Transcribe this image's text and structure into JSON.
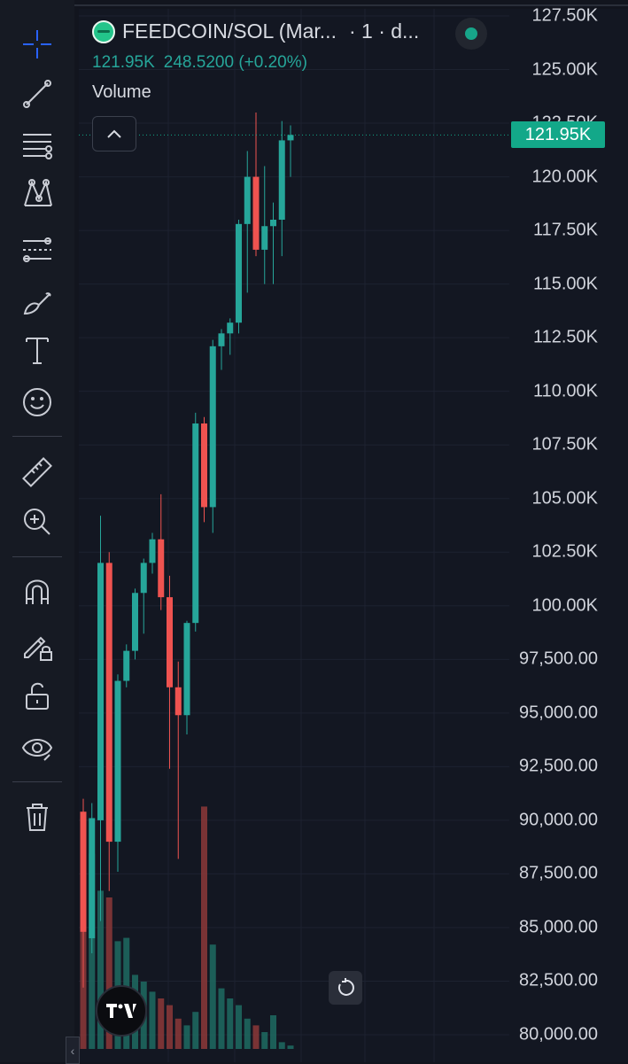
{
  "legend": {
    "symbol": "FEEDCOIN/SOL (Mar...",
    "interval": "· 1 · d...",
    "last_value": "121.95K",
    "change": "248.5200 (+0.20%)"
  },
  "volume_label": "Volume",
  "last_price_badge": "121.95K",
  "colors": {
    "up": "#26a69a",
    "down": "#ef5350",
    "accent": "#2962ff",
    "background": "#131722"
  },
  "toolbar": {
    "tools": [
      {
        "name": "crosshair-icon",
        "active": true
      },
      {
        "name": "trend-line-icon"
      },
      {
        "name": "fib-lines-icon"
      },
      {
        "name": "pattern-icon"
      },
      {
        "name": "prediction-icon"
      },
      {
        "name": "brush-icon"
      },
      {
        "name": "text-icon"
      },
      {
        "name": "emoji-icon"
      },
      {
        "name": "ruler-icon"
      },
      {
        "name": "zoom-in-icon"
      },
      {
        "name": "magnet-icon"
      },
      {
        "name": "lock-drawing-icon"
      },
      {
        "name": "unlock-icon"
      },
      {
        "name": "eye-icon"
      },
      {
        "name": "trash-icon"
      }
    ]
  },
  "chart_data": {
    "type": "candlestick",
    "y_axis": {
      "ticks": [
        "127.50K",
        "125.00K",
        "122.50K",
        "120.00K",
        "117.50K",
        "115.00K",
        "112.50K",
        "110.00K",
        "107.50K",
        "105.00K",
        "102.50K",
        "100.00K",
        "97,500.00",
        "95,000.00",
        "92,500.00",
        "90,000.00",
        "87,500.00",
        "85,000.00",
        "82,500.00",
        "80,000.00"
      ],
      "range": [
        79800,
        128000
      ]
    },
    "last_price": 121950,
    "candles": [
      {
        "o": 90400,
        "h": 91000,
        "l": 82200,
        "c": 84800
      },
      {
        "o": 84500,
        "h": 90800,
        "l": 83800,
        "c": 90100
      },
      {
        "o": 90000,
        "h": 104200,
        "l": 85300,
        "c": 102000
      },
      {
        "o": 102000,
        "h": 102500,
        "l": 86700,
        "c": 89000
      },
      {
        "o": 89000,
        "h": 96800,
        "l": 87600,
        "c": 96500
      },
      {
        "o": 96500,
        "h": 98200,
        "l": 96200,
        "c": 97900
      },
      {
        "o": 97900,
        "h": 100800,
        "l": 97500,
        "c": 100600
      },
      {
        "o": 100600,
        "h": 102200,
        "l": 98700,
        "c": 102000
      },
      {
        "o": 102000,
        "h": 103400,
        "l": 101500,
        "c": 103100
      },
      {
        "o": 103100,
        "h": 105200,
        "l": 99800,
        "c": 100400
      },
      {
        "o": 100400,
        "h": 101400,
        "l": 92400,
        "c": 96200
      },
      {
        "o": 96200,
        "h": 97400,
        "l": 88200,
        "c": 94900
      },
      {
        "o": 94900,
        "h": 99300,
        "l": 94000,
        "c": 99200
      },
      {
        "o": 99200,
        "h": 109000,
        "l": 98800,
        "c": 108500
      },
      {
        "o": 108500,
        "h": 108800,
        "l": 103900,
        "c": 104600
      },
      {
        "o": 104600,
        "h": 112400,
        "l": 103400,
        "c": 112100
      },
      {
        "o": 112100,
        "h": 112900,
        "l": 111000,
        "c": 112700
      },
      {
        "o": 112700,
        "h": 113400,
        "l": 111700,
        "c": 113200
      },
      {
        "o": 113200,
        "h": 118000,
        "l": 112700,
        "c": 117800
      },
      {
        "o": 117800,
        "h": 121200,
        "l": 114600,
        "c": 120000
      },
      {
        "o": 120000,
        "h": 123000,
        "l": 116300,
        "c": 116600
      },
      {
        "o": 116600,
        "h": 120500,
        "l": 115000,
        "c": 117700
      },
      {
        "o": 117700,
        "h": 118800,
        "l": 115000,
        "c": 118000
      },
      {
        "o": 118000,
        "h": 122600,
        "l": 116300,
        "c": 121700
      },
      {
        "o": 121700,
        "h": 122400,
        "l": 120000,
        "c": 121950
      }
    ],
    "volume": [
      0.55,
      0.58,
      0.47,
      0.45,
      0.32,
      0.33,
      0.22,
      0.2,
      0.17,
      0.15,
      0.13,
      0.09,
      0.07,
      0.11,
      0.72,
      0.31,
      0.18,
      0.15,
      0.13,
      0.09,
      0.07,
      0.05,
      0.1,
      0.02,
      0.01
    ]
  }
}
